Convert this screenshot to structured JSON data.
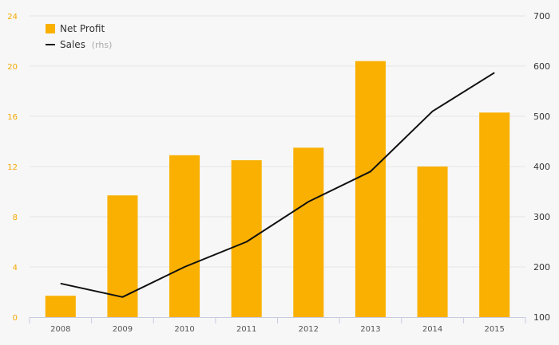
{
  "chart_data": {
    "type": "bar",
    "categories": [
      "2008",
      "2009",
      "2010",
      "2011",
      "2012",
      "2013",
      "2014",
      "2015"
    ],
    "series": [
      {
        "name": "Net Profit",
        "type": "bar",
        "axis": "left",
        "color": "#f9b000",
        "values": [
          1.7,
          9.7,
          12.9,
          12.5,
          13.5,
          20.4,
          12.0,
          16.3
        ]
      },
      {
        "name": "Sales",
        "type": "line",
        "axis": "right",
        "color": "#111111",
        "values": [
          167,
          140,
          200,
          250,
          330,
          390,
          510,
          587
        ]
      }
    ],
    "y_left": {
      "ylim": [
        0,
        24
      ],
      "ticks": [
        "0",
        "4",
        "8",
        "12",
        "16",
        "20",
        "24"
      ],
      "color": "#f5a800"
    },
    "y_right": {
      "ylim": [
        100,
        700
      ],
      "ticks": [
        "100",
        "200",
        "300",
        "400",
        "500",
        "600",
        "700"
      ]
    },
    "legend": {
      "position": "top-left",
      "items": [
        {
          "label": "Net Profit",
          "suffix": ""
        },
        {
          "label": "Sales",
          "suffix": "(rhs)"
        }
      ]
    },
    "grid": true
  }
}
